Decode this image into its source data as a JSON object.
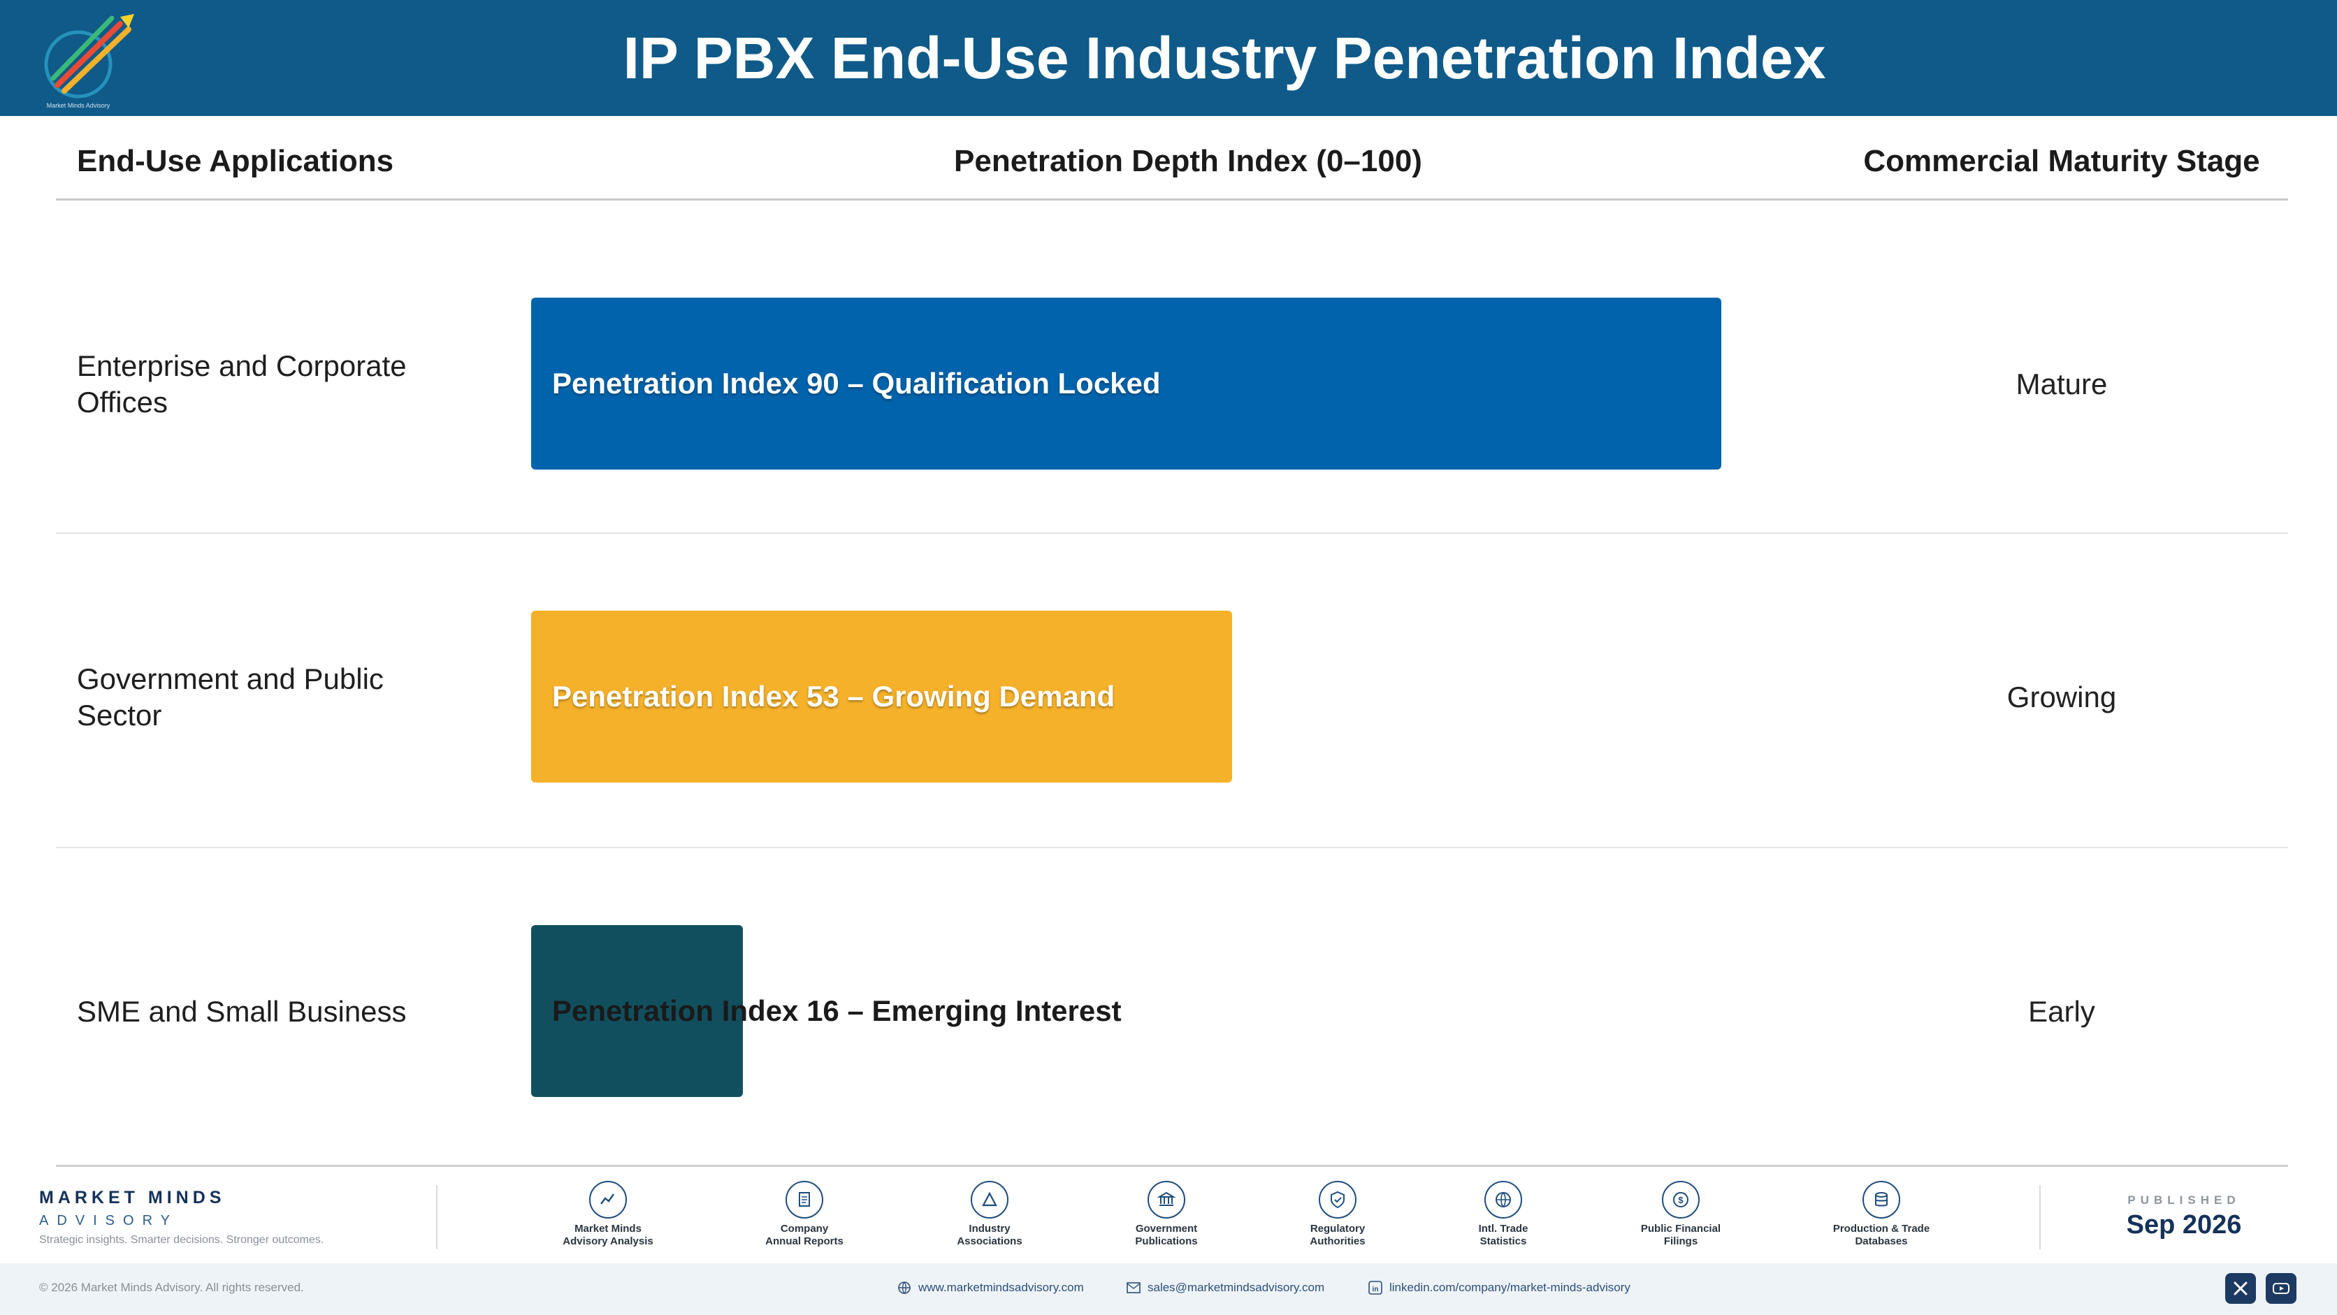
{
  "header": {
    "title": "IP PBX End-Use Industry Penetration Index",
    "logo_icon": "market-minds-advisory-logo"
  },
  "columns": {
    "applications": "End-Use Applications",
    "depth": "Penetration Depth Index (0–100)",
    "stage": "Commercial Maturity Stage"
  },
  "chart_data": {
    "type": "bar",
    "orientation": "horizontal",
    "xlim": [
      0,
      100
    ],
    "categories": [
      "Enterprise and Corporate Offices",
      "Government and Public Sector",
      "SME and Small Business"
    ],
    "values": [
      90,
      53,
      16
    ],
    "bar_labels": [
      "Penetration Index 90 – Qualification Locked",
      "Penetration Index 53 – Growing Demand",
      "Penetration Index 16 – Emerging Interest"
    ],
    "stages": [
      "Mature",
      "Growing",
      "Early"
    ],
    "colors": [
      "#0063ab",
      "#f5b12a",
      "#114f5e"
    ],
    "label_colors": [
      "#ffffff",
      "#ffffff",
      "#1a1a1a"
    ]
  },
  "footer": {
    "brand_name": "MARKET MINDS",
    "brand_sub": "ADVISORY",
    "brand_tagline": "Strategic insights. Smarter decisions. Stronger outcomes.",
    "sources": [
      {
        "label": "Market Minds\nAdvisory Analysis",
        "icon": "trend-chart-icon"
      },
      {
        "label": "Company\nAnnual Reports",
        "icon": "document-icon"
      },
      {
        "label": "Industry\nAssociations",
        "icon": "network-icon"
      },
      {
        "label": "Government\nPublications",
        "icon": "government-building-icon"
      },
      {
        "label": "Regulatory\nAuthorities",
        "icon": "shield-check-icon"
      },
      {
        "label": "Intl. Trade\nStatistics",
        "icon": "globe-icon"
      },
      {
        "label": "Public Financial\nFilings",
        "icon": "dollar-coin-icon"
      },
      {
        "label": "Production & Trade\nDatabases",
        "icon": "database-icon"
      }
    ],
    "published_label": "PUBLISHED",
    "published_date": "Sep 2026",
    "copyright": "© 2026 Market Minds Advisory. All rights reserved.",
    "website": "www.marketmindsadvisory.com",
    "email": "sales@marketmindsadvisory.com",
    "linkedin": "linkedin.com/company/market-minds-advisory"
  }
}
